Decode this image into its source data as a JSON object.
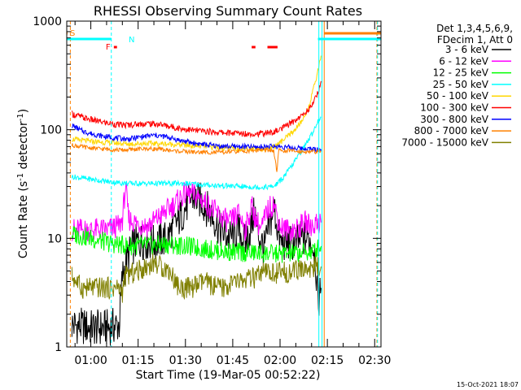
{
  "chart_data": {
    "type": "line",
    "title": "RHESSI Observing Summary Count Rates",
    "xlabel": "Start Time (19-Mar-05 00:52:22)",
    "ylabel": "Count Rate (s",
    "ylabel_sup1": "-1",
    "ylabel_mid": " detector",
    "ylabel_sup2": "-1",
    "ylabel_end": ")",
    "yscale": "log",
    "ylim": [
      1,
      1000
    ],
    "xlim_minutes": [
      52.37,
      152.0
    ],
    "x_tick_labels": [
      "01:00",
      "01:15",
      "01:30",
      "01:45",
      "02:00",
      "02:15",
      "02:30"
    ],
    "x_tick_minutes": [
      60,
      75,
      90,
      105,
      120,
      135,
      150
    ],
    "y_tick_labels": [
      "1",
      "10",
      "100",
      "1000"
    ],
    "y_tick_values": [
      1,
      10,
      100,
      1000
    ],
    "legend_header": [
      "Det 1,3,4,5,6,9,",
      "FDecim 1, Att 0"
    ],
    "legend_position": "right",
    "series": [
      {
        "name": "3 - 6 keV",
        "color": "#000000",
        "points": [
          [
            54,
            1.6
          ],
          [
            60,
            1.5
          ],
          [
            65,
            1.5
          ],
          [
            69,
            1.6
          ],
          [
            70,
            4.5
          ],
          [
            72,
            7
          ],
          [
            74,
            9
          ],
          [
            76,
            9.5
          ],
          [
            80,
            9
          ],
          [
            84,
            10
          ],
          [
            88,
            15
          ],
          [
            92,
            24
          ],
          [
            95,
            22
          ],
          [
            98,
            17
          ],
          [
            101,
            12
          ],
          [
            104,
            10
          ],
          [
            107,
            12
          ],
          [
            109,
            9
          ],
          [
            111,
            13
          ],
          [
            112,
            18
          ],
          [
            113,
            11
          ],
          [
            115,
            8
          ],
          [
            117,
            14
          ],
          [
            118,
            20
          ],
          [
            120,
            9
          ],
          [
            122,
            9
          ],
          [
            125,
            9
          ],
          [
            127,
            10
          ],
          [
            129,
            10
          ],
          [
            131,
            8
          ],
          [
            132,
            2.5
          ],
          [
            133,
            3.5
          ]
        ]
      },
      {
        "name": "6 - 12 keV",
        "color": "#ff00ff",
        "points": [
          [
            54,
            12
          ],
          [
            60,
            12
          ],
          [
            65,
            12
          ],
          [
            69,
            13
          ],
          [
            70,
            15
          ],
          [
            71,
            30
          ],
          [
            72,
            15
          ],
          [
            74,
            14
          ],
          [
            78,
            13
          ],
          [
            82,
            16
          ],
          [
            86,
            20
          ],
          [
            90,
            26
          ],
          [
            93,
            25
          ],
          [
            96,
            22
          ],
          [
            99,
            18
          ],
          [
            101,
            16
          ],
          [
            104,
            14
          ],
          [
            107,
            17
          ],
          [
            109,
            12
          ],
          [
            111,
            20
          ],
          [
            112,
            16
          ],
          [
            114,
            12
          ],
          [
            116,
            18
          ],
          [
            118,
            21
          ],
          [
            120,
            13
          ],
          [
            122,
            12
          ],
          [
            125,
            12
          ],
          [
            128,
            14
          ],
          [
            130,
            13
          ],
          [
            132,
            14
          ],
          [
            133,
            14
          ]
        ]
      },
      {
        "name": "12 - 25 keV",
        "color": "#00ff00",
        "points": [
          [
            54,
            11
          ],
          [
            60,
            10
          ],
          [
            66,
            9
          ],
          [
            72,
            8.5
          ],
          [
            78,
            8.6
          ],
          [
            84,
            8.8
          ],
          [
            90,
            8.5
          ],
          [
            96,
            8
          ],
          [
            102,
            7.6
          ],
          [
            108,
            7.4
          ],
          [
            114,
            7.3
          ],
          [
            120,
            7.2
          ],
          [
            126,
            7.3
          ],
          [
            130,
            7.5
          ],
          [
            133,
            8.5
          ]
        ]
      },
      {
        "name": "25 - 50 keV",
        "color": "#00ffff",
        "points": [
          [
            54,
            37
          ],
          [
            60,
            35
          ],
          [
            66,
            33
          ],
          [
            72,
            32
          ],
          [
            78,
            32
          ],
          [
            84,
            32
          ],
          [
            90,
            32
          ],
          [
            96,
            31
          ],
          [
            102,
            30.5
          ],
          [
            108,
            30
          ],
          [
            114,
            29.5
          ],
          [
            118,
            30
          ],
          [
            121,
            36
          ],
          [
            124,
            48
          ],
          [
            127,
            65
          ],
          [
            130,
            90
          ],
          [
            132,
            120
          ],
          [
            133,
            130
          ]
        ]
      },
      {
        "name": "50 - 100 keV",
        "color": "#ffd700",
        "points": [
          [
            54,
            82
          ],
          [
            60,
            78
          ],
          [
            66,
            76
          ],
          [
            72,
            74
          ],
          [
            78,
            75
          ],
          [
            84,
            74
          ],
          [
            90,
            72
          ],
          [
            96,
            70
          ],
          [
            102,
            68
          ],
          [
            108,
            67
          ],
          [
            114,
            67
          ],
          [
            118,
            69
          ],
          [
            121,
            80
          ],
          [
            124,
            95
          ],
          [
            127,
            120
          ],
          [
            129,
            160
          ],
          [
            131,
            260
          ],
          [
            133,
            480
          ]
        ]
      },
      {
        "name": "100 - 300 keV",
        "color": "#ff0000",
        "points": [
          [
            54,
            140
          ],
          [
            58,
            128
          ],
          [
            62,
            120
          ],
          [
            66,
            114
          ],
          [
            70,
            110
          ],
          [
            74,
            112
          ],
          [
            78,
            114
          ],
          [
            82,
            112
          ],
          [
            86,
            106
          ],
          [
            90,
            101
          ],
          [
            94,
            98
          ],
          [
            98,
            96
          ],
          [
            102,
            94
          ],
          [
            106,
            93
          ],
          [
            110,
            92
          ],
          [
            114,
            92
          ],
          [
            118,
            95
          ],
          [
            121,
            104
          ],
          [
            124,
            118
          ],
          [
            127,
            135
          ],
          [
            130,
            165
          ],
          [
            132,
            220
          ],
          [
            133,
            280
          ]
        ]
      },
      {
        "name": "300 - 800 keV",
        "color": "#0000ff",
        "points": [
          [
            54,
            110
          ],
          [
            57,
            98
          ],
          [
            60,
            92
          ],
          [
            64,
            87
          ],
          [
            68,
            84
          ],
          [
            72,
            82
          ],
          [
            76,
            86
          ],
          [
            80,
            89
          ],
          [
            84,
            86
          ],
          [
            88,
            80
          ],
          [
            92,
            76
          ],
          [
            96,
            73
          ],
          [
            100,
            71
          ],
          [
            104,
            70
          ],
          [
            108,
            70
          ],
          [
            112,
            69
          ],
          [
            116,
            70
          ],
          [
            120,
            70
          ],
          [
            124,
            68
          ],
          [
            128,
            67
          ],
          [
            131,
            66
          ],
          [
            133,
            66
          ]
        ]
      },
      {
        "name": "800 - 7000 keV",
        "color": "#ff8000",
        "points": [
          [
            54,
            72
          ],
          [
            58,
            69
          ],
          [
            62,
            67
          ],
          [
            66,
            66
          ],
          [
            70,
            65
          ],
          [
            74,
            66
          ],
          [
            78,
            67
          ],
          [
            82,
            66
          ],
          [
            86,
            64
          ],
          [
            90,
            63
          ],
          [
            94,
            62
          ],
          [
            98,
            62
          ],
          [
            102,
            62
          ],
          [
            106,
            63
          ],
          [
            110,
            64
          ],
          [
            114,
            65
          ],
          [
            118,
            64
          ],
          [
            119,
            40
          ],
          [
            119.5,
            64
          ],
          [
            123,
            64
          ],
          [
            127,
            63
          ],
          [
            131,
            63
          ],
          [
            133,
            63
          ]
        ]
      },
      {
        "name": "7000 - 15000 keV",
        "color": "#808000",
        "points": [
          [
            54,
            4.5
          ],
          [
            57,
            3.5
          ],
          [
            60,
            3.5
          ],
          [
            65,
            3.5
          ],
          [
            69,
            3.5
          ],
          [
            70,
            3.2
          ],
          [
            71,
            4.5
          ],
          [
            75,
            5
          ],
          [
            80,
            6
          ],
          [
            85,
            5
          ],
          [
            88,
            3.5
          ],
          [
            92,
            3.5
          ],
          [
            96,
            4
          ],
          [
            100,
            3.5
          ],
          [
            103,
            3.5
          ],
          [
            104,
            3.8
          ],
          [
            107,
            4
          ],
          [
            112,
            4.3
          ],
          [
            115,
            4.8
          ],
          [
            120,
            4.8
          ],
          [
            125,
            5
          ],
          [
            129,
            5.3
          ],
          [
            132,
            5.5
          ],
          [
            133,
            5.5
          ]
        ]
      }
    ],
    "annotations": {
      "top_bars": [
        {
          "label": "S",
          "color": "#ff8000",
          "x0": 52.37,
          "x1": 52.6
        },
        {
          "label": "N",
          "color": "#00ffff",
          "x0": 52.37,
          "x1": 66.5
        },
        {
          "label": "",
          "color": "#00ffff",
          "x0": 132.0,
          "x1": 152.0
        },
        {
          "label": "",
          "color": "#ff8000",
          "x0": 134.0,
          "x1": 152.0
        }
      ],
      "flare_bars": [
        {
          "label": "F",
          "color": "#ff0000",
          "x0": 67.3,
          "x1": 68.3
        },
        {
          "label": "",
          "color": "#ff0000",
          "x0": 111.0,
          "x1": 112.2
        },
        {
          "label": "",
          "color": "#ff0000",
          "x0": 116.0,
          "x1": 119.2
        }
      ],
      "vlines": [
        {
          "x": 53.5,
          "color": "#ff8000",
          "dash": true
        },
        {
          "x": 66.5,
          "color": "#00ffff",
          "dash": true
        },
        {
          "x": 132.3,
          "color": "#00ffff",
          "dash": false
        },
        {
          "x": 133.3,
          "color": "#00ffff",
          "dash": false
        },
        {
          "x": 134.0,
          "color": "#ff8000",
          "dash": false
        },
        {
          "x": 150.7,
          "color": "#ff8000",
          "dash": true
        },
        {
          "x": 150.9,
          "color": "#00ffff",
          "dash": true
        }
      ]
    }
  },
  "timestamp": "15-Oct-2021 18:07"
}
